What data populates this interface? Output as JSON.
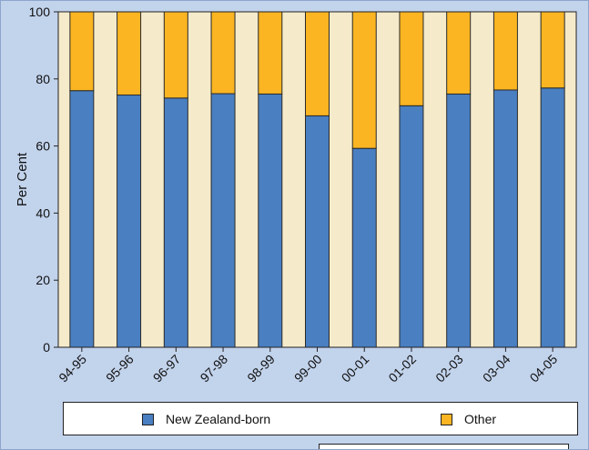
{
  "chart_data": {
    "type": "bar",
    "stacked": true,
    "title": "",
    "ylabel": "Per Cent",
    "xlabel": "",
    "ylim": [
      0,
      100
    ],
    "yticks": [
      0,
      20,
      40,
      60,
      80,
      100
    ],
    "grid": false,
    "legend_position": "bottom",
    "categories": [
      "94-95",
      "95-96",
      "96-97",
      "97-98",
      "98-99",
      "99-00",
      "00-01",
      "01-02",
      "02-03",
      "03-04",
      "04-05"
    ],
    "series": [
      {
        "name": "New Zealand-born",
        "color": "#4a7fc1",
        "values": [
          76.5,
          75.2,
          74.3,
          75.6,
          75.5,
          69.0,
          59.3,
          72.0,
          75.5,
          76.7,
          77.3
        ]
      },
      {
        "name": "Other",
        "color": "#fbb522",
        "values": [
          23.5,
          24.8,
          25.7,
          24.4,
          24.5,
          31.0,
          40.7,
          28.0,
          24.5,
          23.3,
          22.7
        ]
      }
    ],
    "colors": {
      "plot_background": "#f5ebcb",
      "page_background": "#c2d3ec"
    }
  }
}
